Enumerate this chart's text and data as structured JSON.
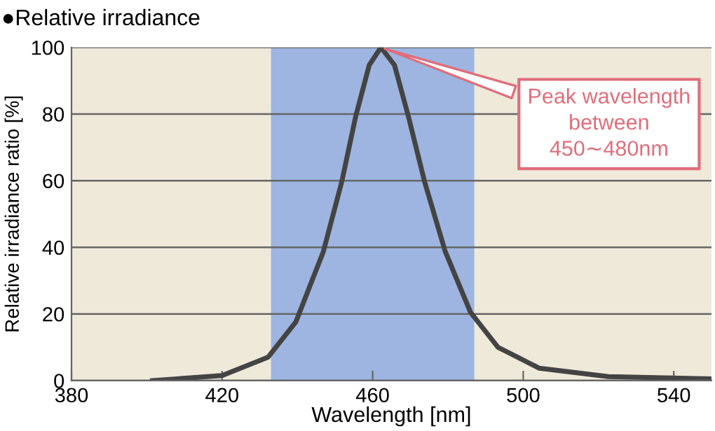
{
  "chart_data": {
    "type": "line",
    "title": "●Relative irradiance",
    "xlabel": "Wavelength [nm]",
    "ylabel": "Relative irradiance ratio [%]",
    "series": [
      {
        "color": "#444444",
        "x": [
          401.5,
          420,
          432.2,
          439.6,
          446.9,
          451.8,
          455.5,
          459.1,
          462.2,
          465.8,
          469.5,
          473.8,
          479.3,
          486,
          493.3,
          504.3,
          522.6,
          550
        ],
        "values": [
          0,
          1.5,
          7,
          17.6,
          38.7,
          59.7,
          79.3,
          94.7,
          100,
          94.7,
          79.3,
          59.7,
          38.7,
          20.5,
          10,
          3.7,
          1.2,
          0.5
        ]
      }
    ],
    "xlim": [
      380,
      550
    ],
    "xticks": [
      380,
      420,
      460,
      500,
      540
    ],
    "ylim": [
      0,
      100
    ],
    "yticks": [
      0,
      20,
      40,
      60,
      80,
      100
    ],
    "bands": [
      {
        "axis": "x",
        "from": 433,
        "to": 487,
        "color": "#9db5e0"
      }
    ],
    "annotations": [
      {
        "text": "Peak wavelength\nbetween\n450∼480nm",
        "x": 462.2,
        "y": 100
      }
    ],
    "grid": "y",
    "marker": "none",
    "line_style": "solid"
  }
}
